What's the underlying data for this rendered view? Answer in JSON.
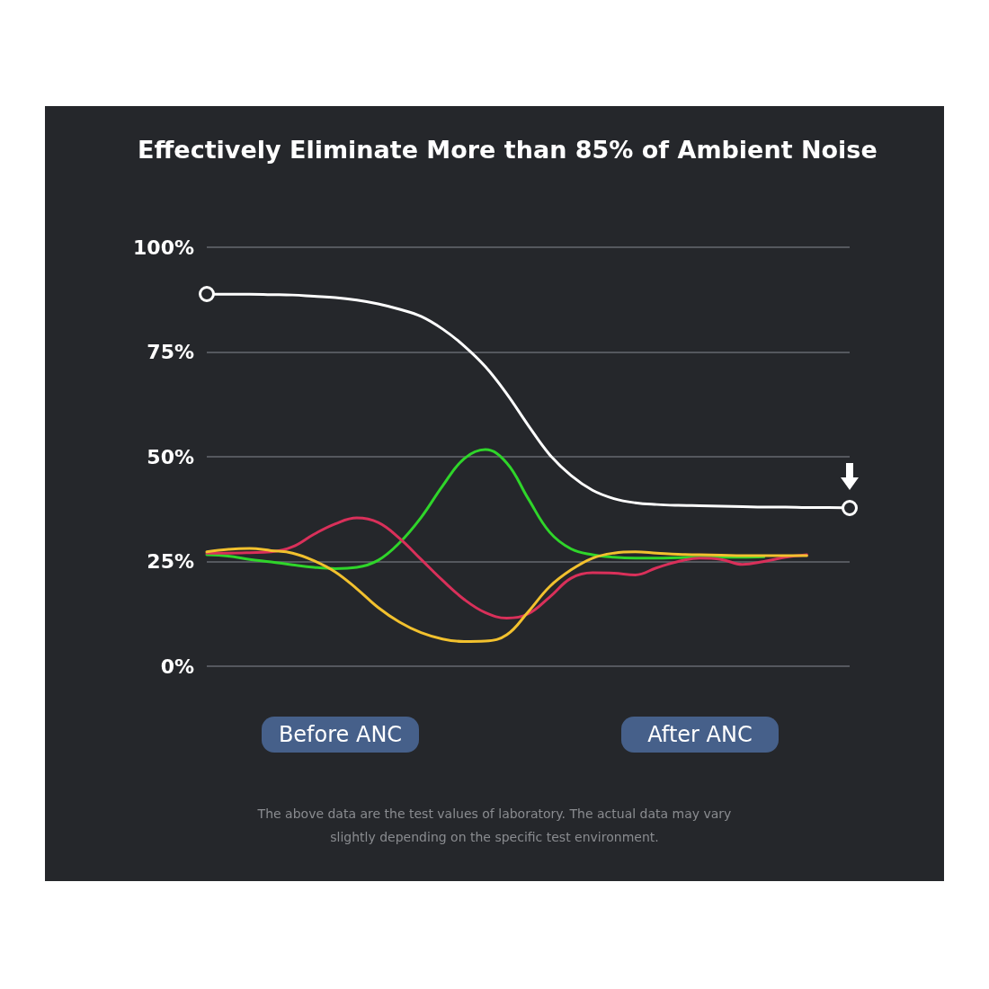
{
  "chart_data": {
    "type": "line",
    "title": "Effectively Eliminate More than 85% of Ambient Noise",
    "categories": [
      null,
      null,
      null,
      null,
      null,
      null,
      null,
      null,
      null,
      null,
      null,
      null,
      null,
      null,
      null,
      null,
      null,
      null,
      null,
      null,
      null,
      null,
      null,
      null,
      null,
      null,
      null,
      null,
      null,
      null,
      null
    ],
    "series": [
      {
        "color": "#ffffff",
        "values": [
          88.8,
          88.8,
          88.8,
          88.7,
          88.6,
          88.3,
          88,
          87.4,
          86.5,
          85.2,
          83.5,
          80.5,
          76.5,
          71.5,
          65,
          57.5,
          50.5,
          45.5,
          42,
          40,
          39,
          38.6,
          38.4,
          38.3,
          38.2,
          38.1,
          38.0,
          38.0,
          37.9,
          37.9,
          37.8
        ]
      },
      {
        "color": "#2fd52a",
        "values": [
          26.6,
          26.3,
          25.5,
          24.9,
          24.2,
          23.6,
          23.3,
          23.6,
          25.3,
          29.5,
          35.5,
          43,
          49.5,
          51.7,
          48.5,
          40,
          32,
          28,
          26.6,
          26,
          25.8,
          25.8,
          25.9,
          26,
          26,
          26,
          26.1,
          null,
          null,
          null,
          null
        ]
      },
      {
        "color": "#d9305a",
        "values": [
          27,
          27,
          27.1,
          27.3,
          28.5,
          31.5,
          34,
          35.4,
          34.3,
          30.5,
          25.5,
          20.5,
          16,
          12.8,
          11.5,
          12.5,
          16.5,
          21,
          22.3,
          22.2,
          21.8,
          23.5,
          25,
          25.8,
          25.5,
          24.3,
          25,
          26,
          26.6,
          null,
          null
        ]
      },
      {
        "color": "#f2c12e",
        "values": [
          27.3,
          27.9,
          28.1,
          27.6,
          27,
          25.2,
          22.5,
          18.5,
          14,
          10.5,
          8,
          6.5,
          5.9,
          6,
          7.5,
          13,
          19,
          23,
          25.8,
          27,
          27.3,
          27,
          26.7,
          26.6,
          26.5,
          26.4,
          26.4,
          26.4,
          26.4,
          null,
          null
        ]
      }
    ],
    "ylim": [
      0,
      100
    ],
    "yticks": [
      {
        "value": 0,
        "label": "0%"
      },
      {
        "value": 25,
        "label": "25%"
      },
      {
        "value": 50,
        "label": "50%"
      },
      {
        "value": 75,
        "label": "75%"
      },
      {
        "value": 100,
        "label": "100%"
      }
    ],
    "grid": "y",
    "tick_labels": "y",
    "marker": "none",
    "line_style": "solid",
    "annotations": [
      "Before ANC",
      "After ANC",
      "The above data are the test values of laboratory. The actual data may vary slightly depending on the specific test environment."
    ]
  }
}
